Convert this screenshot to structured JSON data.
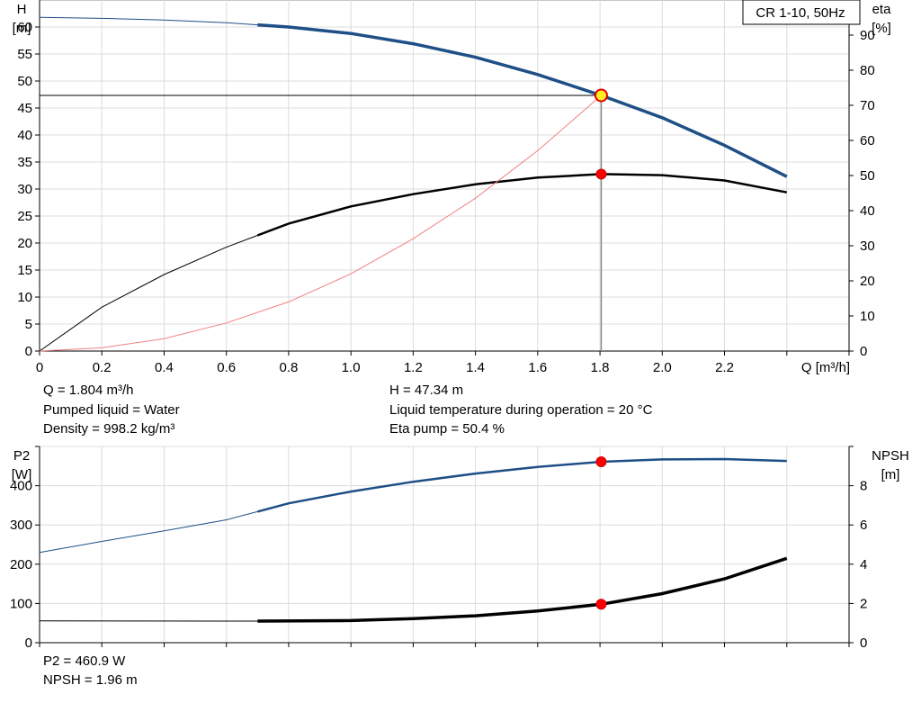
{
  "chart_data": [
    {
      "type": "line",
      "title": "CR 1-10, 50Hz",
      "xlabel": "Q [m³/h]",
      "ylabel": "H\n[m]",
      "y2label": "eta\n[%]",
      "xlim": [
        0,
        2.6
      ],
      "ylim": [
        0,
        65
      ],
      "y2lim": [
        0,
        100
      ],
      "x_ticks": [
        0,
        0.2,
        0.4,
        0.6,
        0.8,
        1.0,
        1.2,
        1.4,
        1.6,
        1.8,
        2.0,
        2.2
      ],
      "x_tick_labels": [
        "0",
        "0.2",
        "0.4",
        "0.6",
        "0.8",
        "1.0",
        "1.2",
        "1.4",
        "1.6",
        "1.8",
        "2.0",
        "2.2"
      ],
      "y_ticks": [
        0,
        5,
        10,
        15,
        20,
        25,
        30,
        35,
        40,
        45,
        50,
        55,
        60
      ],
      "y_tick_labels": [
        "0",
        "5",
        "10",
        "15",
        "20",
        "25",
        "30",
        "35",
        "40",
        "45",
        "50",
        "55",
        "60"
      ],
      "y2_ticks": [
        0,
        10,
        20,
        30,
        40,
        50,
        60,
        70,
        80,
        90
      ],
      "y2_tick_labels": [
        "0",
        "10",
        "20",
        "30",
        "40",
        "50",
        "60",
        "70",
        "80",
        "90"
      ],
      "grid": true,
      "series": [
        {
          "axis": "left",
          "color": "#1e4f86",
          "x": [
            0,
            0.2,
            0.4,
            0.6,
            0.8,
            1.0,
            1.2,
            1.4,
            1.6,
            1.804,
            2.0,
            2.2,
            2.4
          ],
          "y": [
            61.8,
            61.6,
            61.3,
            60.8,
            60.0,
            58.8,
            56.9,
            54.4,
            51.2,
            47.34,
            43.2,
            38.1,
            32.3
          ]
        },
        {
          "axis": "right",
          "color": "#000000",
          "x": [
            0,
            0.2,
            0.4,
            0.6,
            0.8,
            1.0,
            1.2,
            1.4,
            1.6,
            1.804,
            2.0,
            2.2,
            2.4
          ],
          "y": [
            0,
            12.5,
            21.8,
            29.6,
            36.3,
            41.2,
            44.7,
            47.5,
            49.4,
            50.4,
            50.1,
            48.6,
            45.2
          ]
        },
        {
          "axis": "left",
          "color": "#f08080",
          "x": [
            0,
            0.2,
            0.4,
            0.6,
            0.8,
            1.0,
            1.2,
            1.4,
            1.6,
            1.804
          ],
          "y": [
            0,
            0.6,
            2.3,
            5.2,
            9.1,
            14.3,
            20.8,
            28.3,
            37.1,
            47.34
          ]
        }
      ],
      "operating_point": {
        "x": 1.804,
        "y": 47.34,
        "eta": 50.4
      }
    },
    {
      "type": "line",
      "xlim": [
        0,
        2.6
      ],
      "ylabel": "P2\n[W]",
      "y2label": "NPSH\n[m]",
      "ylim": [
        0,
        500
      ],
      "y2lim": [
        0,
        10
      ],
      "y_ticks": [
        0,
        100,
        200,
        300,
        400
      ],
      "y_tick_labels": [
        "0",
        "100",
        "200",
        "300",
        "400"
      ],
      "y2_ticks": [
        0,
        2,
        4,
        6,
        8
      ],
      "y2_tick_labels": [
        "0",
        "2",
        "4",
        "6",
        "8"
      ],
      "grid": true,
      "series": [
        {
          "axis": "left",
          "color": "#1e4f86",
          "x": [
            0,
            0.2,
            0.4,
            0.6,
            0.8,
            1.0,
            1.2,
            1.4,
            1.6,
            1.804,
            2.0,
            2.2,
            2.4
          ],
          "y": [
            230,
            258,
            285,
            313,
            355,
            385,
            410,
            431,
            448,
            460.9,
            467,
            468,
            463
          ]
        },
        {
          "axis": "right",
          "color": "#000000",
          "x": [
            0,
            0.7,
            1.0,
            1.2,
            1.4,
            1.6,
            1.804,
            2.0,
            2.2,
            2.4
          ],
          "y": [
            1.11,
            1.1,
            1.13,
            1.23,
            1.37,
            1.62,
            1.96,
            2.5,
            3.25,
            4.3
          ]
        }
      ],
      "operating_point": {
        "x": 1.804,
        "p2": 460.9,
        "npsh": 1.96
      }
    }
  ],
  "info": {
    "q": "Q = 1.804 m³/h",
    "h": "H = 47.34 m",
    "liquid": "Pumped liquid = Water",
    "temp": "Liquid temperature during operation = 20 °C",
    "density": "Density = 998.2 kg/m³",
    "eta": "Eta pump = 50.4 %",
    "p2": "P2 = 460.9 W",
    "npsh": "NPSH = 1.96 m"
  }
}
